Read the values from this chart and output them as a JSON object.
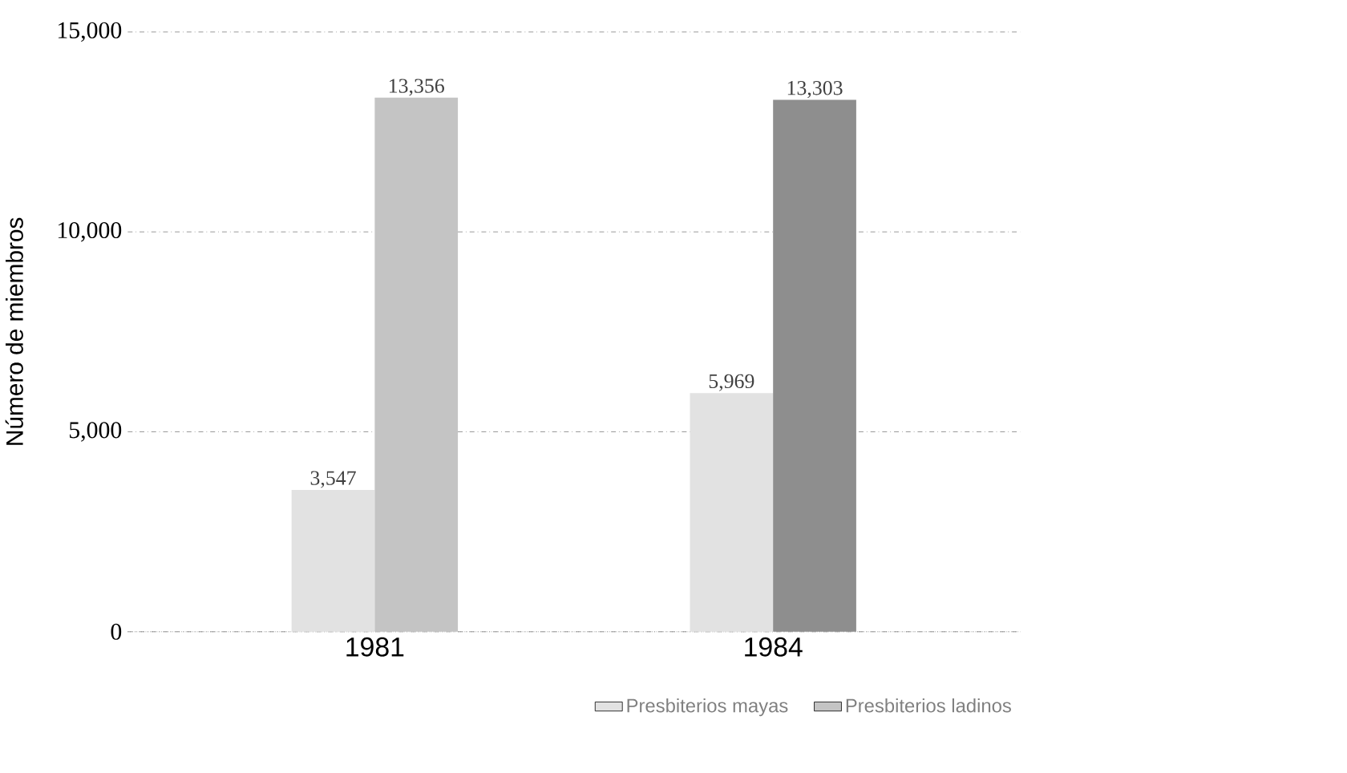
{
  "chart_data": {
    "type": "bar",
    "ylabel": "Número de miembros",
    "categories": [
      "1981",
      "1984"
    ],
    "series": [
      {
        "name": "Presbiterios mayas",
        "color": "#e2e2e2",
        "values": [
          3547,
          5969
        ],
        "value_labels": [
          "3,547",
          "5,969"
        ]
      },
      {
        "name": "Presbiterios ladinos",
        "colors": [
          "#c4c4c4",
          "#8e8e8e"
        ],
        "values": [
          13356,
          13303
        ],
        "value_labels": [
          "13,356",
          "13,303"
        ]
      }
    ],
    "ylim": [
      0,
      15000
    ],
    "yticks": [
      {
        "value": 0,
        "label": "0"
      },
      {
        "value": 5000,
        "label": "5,000"
      },
      {
        "value": 10000,
        "label": "10,000"
      },
      {
        "value": 15000,
        "label": "15,000"
      }
    ],
    "grid": "y",
    "legend": "bottom right"
  }
}
